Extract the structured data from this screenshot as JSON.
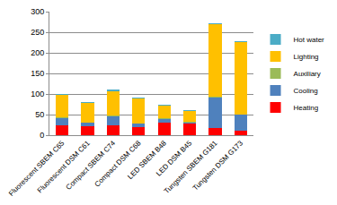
{
  "chart_data": {
    "type": "bar",
    "stacked": true,
    "grid": true,
    "legend": "right",
    "categories": [
      "Fluorescent SBEM C65",
      "Fluorescent DSM C61",
      "Compact SBEM C74",
      "Compact DSM C68",
      "LED SBEM B48",
      "LED DSM B45",
      "Tungsten SBEM G181",
      "Tungsten DSM G173"
    ],
    "ylim": [
      0,
      300
    ],
    "yticks": [
      0,
      50,
      100,
      150,
      200,
      250,
      300
    ],
    "series": [
      {
        "name": "Heating",
        "color": "#ff0000",
        "values": [
          25,
          22,
          25,
          20,
          30,
          28,
          18,
          10
        ]
      },
      {
        "name": "Cooling",
        "color": "#4f81bd",
        "values": [
          17,
          8,
          20,
          8,
          10,
          3,
          73,
          40
        ]
      },
      {
        "name": "Auxiliary",
        "color": "#9bbb59",
        "values": [
          2,
          1,
          2,
          1,
          1,
          1,
          2,
          1
        ]
      },
      {
        "name": "Lighting",
        "color": "#ffc000",
        "values": [
          53,
          48,
          60,
          60,
          30,
          27,
          176,
          175
        ]
      },
      {
        "name": "Hot water",
        "color": "#4bacc6",
        "values": [
          3,
          1,
          3,
          2,
          2,
          1,
          2,
          2
        ]
      }
    ]
  }
}
